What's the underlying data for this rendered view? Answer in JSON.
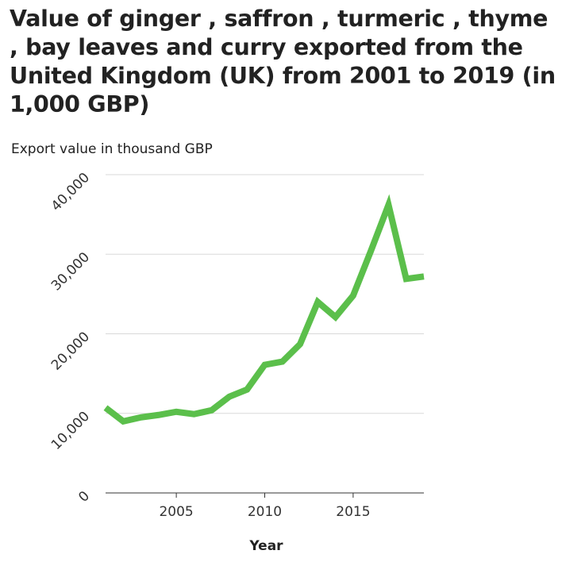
{
  "chart_data": {
    "type": "line",
    "title": "Value of ginger , saffron , turmeric , thyme , bay leaves and curry exported from the United Kingdom (UK) from 2001 to 2019 (in 1,000 GBP)",
    "xlabel": "Year",
    "ylabel": "Export value in thousand GBP",
    "x": [
      2001,
      2002,
      2003,
      2004,
      2005,
      2006,
      2007,
      2008,
      2009,
      2010,
      2011,
      2012,
      2013,
      2014,
      2015,
      2016,
      2017,
      2018,
      2019
    ],
    "series": [
      {
        "values": [
          10700,
          9000,
          9500,
          9800,
          10200,
          9900,
          10400,
          12100,
          13000,
          16100,
          16500,
          18700,
          24000,
          22100,
          24800,
          30400,
          36200,
          26900,
          27200
        ],
        "color": "#5bbf4b"
      }
    ],
    "xlim": [
      2001,
      2019
    ],
    "ylim": [
      0,
      40000
    ],
    "x_ticks": [
      2005,
      2010,
      2015
    ],
    "x_tick_labels": [
      "2005",
      "2010",
      "2015"
    ],
    "y_ticks": [
      0,
      10000,
      20000,
      30000,
      40000
    ],
    "y_tick_labels": [
      "0",
      "10,000",
      "20,000",
      "30,000",
      "40,000"
    ],
    "grid": "horizontal",
    "legend": "none"
  }
}
